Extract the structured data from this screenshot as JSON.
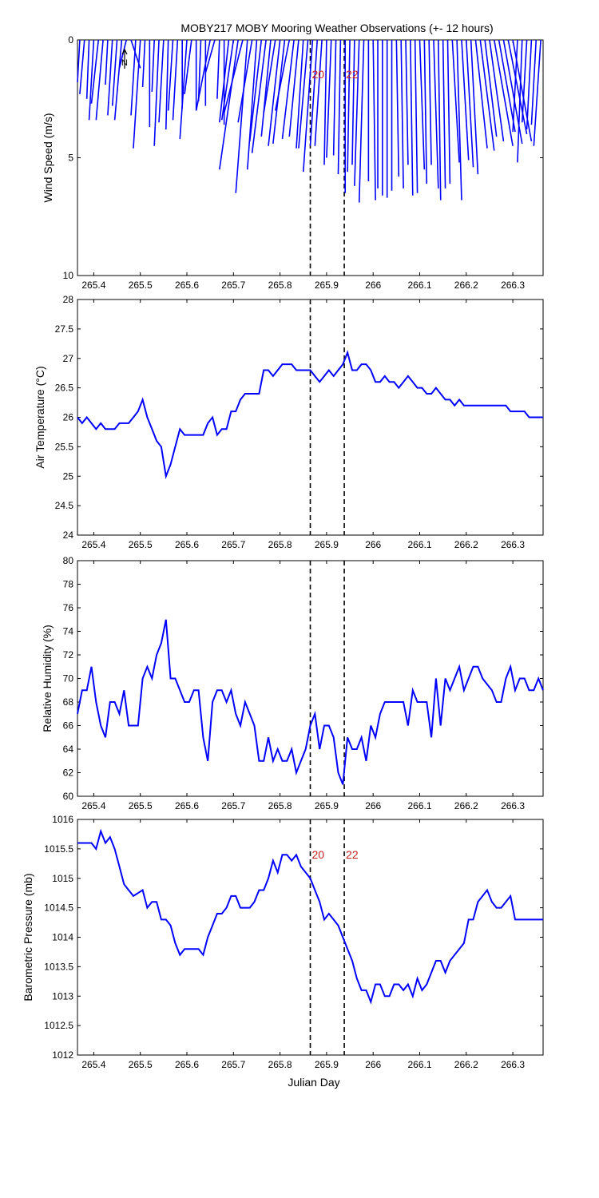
{
  "title": "MOBY217 MOBY Mooring Weather Observations (+- 12 hours)",
  "xlabel": "Julian Day",
  "marker_labels": [
    "20",
    "22"
  ],
  "colors": {
    "series": "#0000ff",
    "marker_line": "#000000",
    "marker_label": "#cc2222",
    "axes": "#000000"
  },
  "chart_data": [
    {
      "type": "line",
      "name": "wind",
      "ylabel": "Wind Speed (m/s)",
      "xlim": [
        265.365,
        266.365
      ],
      "ylim": [
        0,
        10
      ],
      "y_reversed": true,
      "yticks": [
        0,
        5,
        10
      ],
      "xticks": [
        265.4,
        265.5,
        265.6,
        265.7,
        265.8,
        265.9,
        266.0,
        266.1,
        266.2,
        266.3
      ],
      "xtick_labels": [
        "265.4",
        "265.5",
        "265.6",
        "265.7",
        "265.8",
        "265.9",
        "266",
        "266.1",
        "266.2",
        "266.3"
      ],
      "vlines": [
        265.865,
        265.938
      ],
      "stick_origins_x": [
        265.37,
        265.38,
        265.39,
        265.4,
        265.41,
        265.42,
        265.43,
        265.44,
        265.45,
        265.46,
        265.47,
        265.48,
        265.49,
        265.5,
        265.51,
        265.52,
        265.53,
        265.54,
        265.55,
        265.56,
        265.57,
        265.58,
        265.59,
        265.6,
        265.61,
        265.62,
        265.63,
        265.64,
        265.65,
        265.66,
        265.67,
        265.68,
        265.69,
        265.7,
        265.71,
        265.72,
        265.73,
        265.74,
        265.75,
        265.76,
        265.77,
        265.78,
        265.79,
        265.8,
        265.81,
        265.82,
        265.83,
        265.84,
        265.85,
        265.86,
        265.87,
        265.88,
        265.89,
        265.9,
        265.91,
        265.92,
        265.93,
        265.94,
        265.95,
        265.96,
        265.97,
        265.98,
        265.99,
        266.0,
        266.01,
        266.02,
        266.03,
        266.04,
        266.05,
        266.06,
        266.07,
        266.08,
        266.09,
        266.1,
        266.11,
        266.12,
        266.13,
        266.14,
        266.15,
        266.16,
        266.17,
        266.18,
        266.19,
        266.2,
        266.21,
        266.22,
        266.23,
        266.24,
        266.25,
        266.26,
        266.27,
        266.28,
        266.29,
        266.3,
        266.31,
        266.32,
        266.33,
        266.34,
        266.35,
        266.36
      ],
      "stick_tips_x": [
        265.365,
        265.37,
        265.385,
        265.39,
        265.395,
        265.405,
        265.425,
        265.43,
        265.44,
        265.445,
        265.455,
        265.5,
        265.48,
        265.485,
        265.505,
        265.52,
        265.525,
        265.53,
        265.54,
        265.555,
        265.56,
        265.57,
        265.59,
        265.585,
        265.595,
        265.62,
        265.625,
        265.64,
        265.62,
        265.64,
        265.665,
        265.68,
        265.67,
        265.675,
        265.67,
        265.68,
        265.705,
        265.71,
        265.73,
        265.735,
        265.74,
        265.76,
        265.765,
        265.775,
        265.785,
        265.79,
        265.805,
        265.82,
        265.835,
        265.84,
        265.85,
        265.865,
        265.875,
        265.895,
        265.9,
        265.915,
        265.925,
        265.94,
        265.945,
        265.955,
        265.96,
        265.97,
        265.99,
        266.005,
        266.01,
        266.02,
        266.03,
        266.04,
        266.055,
        266.065,
        266.075,
        266.085,
        266.095,
        266.11,
        266.115,
        266.125,
        266.14,
        266.145,
        266.155,
        266.165,
        266.185,
        266.19,
        266.205,
        266.215,
        266.225,
        266.245,
        266.26,
        266.265,
        266.28,
        266.3,
        266.305,
        266.32,
        266.33,
        266.34,
        266.3,
        266.31,
        266.32,
        266.33,
        266.34,
        266.345
      ],
      "stick_tips_y": [
        1.8,
        2.3,
        2.5,
        3.4,
        2.7,
        3.4,
        1.9,
        3.2,
        2.8,
        3.4,
        1.2,
        1.2,
        3.2,
        4.6,
        2.0,
        3.7,
        2.2,
        4.5,
        3.5,
        3.8,
        3.0,
        3.4,
        2.9,
        4.2,
        2.3,
        3.0,
        2.6,
        2.8,
        3.0,
        1.4,
        2.5,
        3.6,
        3.5,
        3.4,
        5.5,
        3.1,
        6.5,
        3.5,
        5.5,
        4.3,
        4.8,
        4.1,
        3.1,
        4.5,
        4.4,
        3.0,
        4.2,
        4.1,
        4.6,
        4.6,
        5.6,
        4.5,
        4.5,
        5.3,
        5.0,
        4.9,
        5.7,
        6.5,
        5.6,
        5.3,
        6.2,
        6.9,
        6.0,
        6.8,
        6.3,
        6.6,
        6.7,
        6.4,
        5.8,
        6.3,
        5.3,
        6.6,
        6.5,
        5.5,
        6.1,
        5.3,
        6.3,
        6.8,
        6.3,
        6.1,
        5.2,
        6.8,
        5.1,
        5.4,
        5.7,
        4.6,
        4.7,
        4.1,
        4.3,
        4.5,
        3.9,
        4.4,
        4.0,
        4.3,
        3.9,
        5.2,
        3.5,
        3.8,
        3.6,
        4.5
      ]
    },
    {
      "type": "line",
      "name": "airtemp",
      "ylabel": "Air Temperature (°C)",
      "xlim": [
        265.365,
        266.365
      ],
      "ylim": [
        24,
        28
      ],
      "yticks": [
        24,
        24.5,
        25,
        25.5,
        26,
        26.5,
        27,
        27.5,
        28
      ],
      "ytick_labels": [
        "24",
        "24.5",
        "25",
        "25.5",
        "26",
        "26.5",
        "27",
        "27.5",
        "28"
      ],
      "xticks": [
        265.4,
        265.5,
        265.6,
        265.7,
        265.8,
        265.9,
        266.0,
        266.1,
        266.2,
        266.3
      ],
      "xtick_labels": [
        "265.4",
        "265.5",
        "265.6",
        "265.7",
        "265.8",
        "265.9",
        "266",
        "266.1",
        "266.2",
        "266.3"
      ],
      "vlines": [
        265.865,
        265.938
      ],
      "x": [
        265.365,
        265.375,
        265.385,
        265.395,
        265.405,
        265.415,
        265.425,
        265.435,
        265.445,
        265.455,
        265.465,
        265.475,
        265.485,
        265.495,
        265.505,
        265.515,
        265.525,
        265.535,
        265.545,
        265.555,
        265.565,
        265.575,
        265.585,
        265.595,
        265.605,
        265.615,
        265.625,
        265.635,
        265.645,
        265.655,
        265.665,
        265.675,
        265.685,
        265.695,
        265.705,
        265.715,
        265.725,
        265.735,
        265.745,
        265.755,
        265.765,
        265.775,
        265.785,
        265.795,
        265.805,
        265.815,
        265.825,
        265.835,
        265.845,
        265.855,
        265.865,
        265.875,
        265.885,
        265.895,
        265.905,
        265.915,
        265.925,
        265.935,
        265.945,
        265.955,
        265.965,
        265.975,
        265.985,
        265.995,
        266.005,
        266.015,
        266.025,
        266.035,
        266.045,
        266.055,
        266.065,
        266.075,
        266.085,
        266.095,
        266.105,
        266.115,
        266.125,
        266.135,
        266.145,
        266.155,
        266.165,
        266.175,
        266.185,
        266.195,
        266.205,
        266.215,
        266.225,
        266.235,
        266.245,
        266.255,
        266.265,
        266.275,
        266.285,
        266.295,
        266.305,
        266.315,
        266.325,
        266.335,
        266.345,
        266.355,
        266.365
      ],
      "y": [
        26.0,
        25.9,
        26.0,
        25.9,
        25.8,
        25.9,
        25.8,
        25.8,
        25.8,
        25.9,
        25.9,
        25.9,
        26.0,
        26.1,
        26.3,
        26.0,
        25.8,
        25.6,
        25.5,
        25.0,
        25.2,
        25.5,
        25.8,
        25.7,
        25.7,
        25.7,
        25.7,
        25.7,
        25.9,
        26.0,
        25.7,
        25.8,
        25.8,
        26.1,
        26.1,
        26.3,
        26.4,
        26.4,
        26.4,
        26.4,
        26.8,
        26.8,
        26.7,
        26.8,
        26.9,
        26.9,
        26.9,
        26.8,
        26.8,
        26.8,
        26.8,
        26.7,
        26.6,
        26.7,
        26.8,
        26.7,
        26.8,
        26.9,
        27.1,
        26.8,
        26.8,
        26.9,
        26.9,
        26.8,
        26.6,
        26.6,
        26.7,
        26.6,
        26.6,
        26.5,
        26.6,
        26.7,
        26.6,
        26.5,
        26.5,
        26.4,
        26.4,
        26.5,
        26.4,
        26.3,
        26.3,
        26.2,
        26.3,
        26.2,
        26.2,
        26.2,
        26.2,
        26.2,
        26.2,
        26.2,
        26.2,
        26.2,
        26.2,
        26.1,
        26.1,
        26.1,
        26.1,
        26.0,
        26.0,
        26.0,
        26.0
      ]
    },
    {
      "type": "line",
      "name": "humidity",
      "ylabel": "Relative Humidity (%)",
      "xlim": [
        265.365,
        266.365
      ],
      "ylim": [
        60,
        80
      ],
      "yticks": [
        60,
        62,
        64,
        66,
        68,
        70,
        72,
        74,
        76,
        78,
        80
      ],
      "ytick_labels": [
        "60",
        "62",
        "64",
        "66",
        "68",
        "70",
        "72",
        "74",
        "76",
        "78",
        "80"
      ],
      "xticks": [
        265.4,
        265.5,
        265.6,
        265.7,
        265.8,
        265.9,
        266.0,
        266.1,
        266.2,
        266.3
      ],
      "xtick_labels": [
        "265.4",
        "265.5",
        "265.6",
        "265.7",
        "265.8",
        "265.9",
        "266",
        "266.1",
        "266.2",
        "266.3"
      ],
      "vlines": [
        265.865,
        265.938
      ],
      "x": [
        265.365,
        265.375,
        265.385,
        265.395,
        265.405,
        265.415,
        265.425,
        265.435,
        265.445,
        265.455,
        265.465,
        265.475,
        265.485,
        265.495,
        265.505,
        265.515,
        265.525,
        265.535,
        265.545,
        265.555,
        265.565,
        265.575,
        265.585,
        265.595,
        265.605,
        265.615,
        265.625,
        265.635,
        265.645,
        265.655,
        265.665,
        265.675,
        265.685,
        265.695,
        265.705,
        265.715,
        265.725,
        265.735,
        265.745,
        265.755,
        265.765,
        265.775,
        265.785,
        265.795,
        265.805,
        265.815,
        265.825,
        265.835,
        265.845,
        265.855,
        265.865,
        265.875,
        265.885,
        265.895,
        265.905,
        265.915,
        265.925,
        265.935,
        265.945,
        265.955,
        265.965,
        265.975,
        265.985,
        265.995,
        266.005,
        266.015,
        266.025,
        266.035,
        266.045,
        266.055,
        266.065,
        266.075,
        266.085,
        266.095,
        266.105,
        266.115,
        266.125,
        266.135,
        266.145,
        266.155,
        266.165,
        266.175,
        266.185,
        266.195,
        266.205,
        266.215,
        266.225,
        266.235,
        266.245,
        266.255,
        266.265,
        266.275,
        266.285,
        266.295,
        266.305,
        266.315,
        266.325,
        266.335,
        266.345,
        266.355,
        266.365
      ],
      "y": [
        67,
        69,
        69,
        71,
        68,
        66,
        65,
        68,
        68,
        67,
        69,
        66,
        66,
        66,
        70,
        71,
        70,
        72,
        73,
        75,
        70,
        70,
        69,
        68,
        68,
        69,
        69,
        65,
        63,
        68,
        69,
        69,
        68,
        69,
        67,
        66,
        68,
        67,
        66,
        63,
        63,
        65,
        63,
        64,
        63,
        63,
        64,
        62,
        63,
        64,
        66,
        67,
        64,
        66,
        66,
        65,
        62,
        61,
        65,
        64,
        64,
        65,
        63,
        66,
        65,
        67,
        68,
        68,
        68,
        68,
        68,
        66,
        69,
        68,
        68,
        68,
        65,
        70,
        66,
        70,
        69,
        70,
        71,
        69,
        70,
        71,
        71,
        70,
        69.5,
        69,
        68,
        68,
        70,
        71,
        69,
        70,
        70,
        69,
        69,
        70,
        69
      ]
    },
    {
      "type": "line",
      "name": "pressure",
      "ylabel": "Barometric Pressure (mb)",
      "xlim": [
        265.365,
        266.365
      ],
      "ylim": [
        1012,
        1016
      ],
      "yticks": [
        1012,
        1012.5,
        1013,
        1013.5,
        1014,
        1014.5,
        1015,
        1015.5,
        1016
      ],
      "ytick_labels": [
        "1012",
        "1012.5",
        "1013",
        "1013.5",
        "1014",
        "1014.5",
        "1015",
        "1015.5",
        "1016"
      ],
      "xticks": [
        265.4,
        265.5,
        265.6,
        265.7,
        265.8,
        265.9,
        266.0,
        266.1,
        266.2,
        266.3
      ],
      "xtick_labels": [
        "265.4",
        "265.5",
        "265.6",
        "265.7",
        "265.8",
        "265.9",
        "266",
        "266.1",
        "266.2",
        "266.3"
      ],
      "vlines": [
        265.865,
        265.938
      ],
      "show_marker_labels": true,
      "x": [
        265.365,
        265.375,
        265.385,
        265.395,
        265.405,
        265.415,
        265.425,
        265.435,
        265.445,
        265.455,
        265.465,
        265.475,
        265.485,
        265.495,
        265.505,
        265.515,
        265.525,
        265.535,
        265.545,
        265.555,
        265.565,
        265.575,
        265.585,
        265.595,
        265.605,
        265.615,
        265.625,
        265.635,
        265.645,
        265.655,
        265.665,
        265.675,
        265.685,
        265.695,
        265.705,
        265.715,
        265.725,
        265.735,
        265.745,
        265.755,
        265.765,
        265.775,
        265.785,
        265.795,
        265.805,
        265.815,
        265.825,
        265.835,
        265.845,
        265.855,
        265.865,
        265.875,
        265.885,
        265.895,
        265.905,
        265.915,
        265.925,
        265.935,
        265.945,
        265.955,
        265.965,
        265.975,
        265.985,
        265.995,
        266.005,
        266.015,
        266.025,
        266.035,
        266.045,
        266.055,
        266.065,
        266.075,
        266.085,
        266.095,
        266.105,
        266.115,
        266.125,
        266.135,
        266.145,
        266.155,
        266.165,
        266.175,
        266.185,
        266.195,
        266.205,
        266.215,
        266.225,
        266.235,
        266.245,
        266.255,
        266.265,
        266.275,
        266.285,
        266.295,
        266.305,
        266.315,
        266.325,
        266.335,
        266.345,
        266.355,
        266.365
      ],
      "y": [
        1015.6,
        1015.6,
        1015.6,
        1015.6,
        1015.5,
        1015.8,
        1015.6,
        1015.7,
        1015.5,
        1015.2,
        1014.9,
        1014.8,
        1014.7,
        1014.75,
        1014.8,
        1014.5,
        1014.6,
        1014.6,
        1014.3,
        1014.3,
        1014.2,
        1013.9,
        1013.7,
        1013.8,
        1013.8,
        1013.8,
        1013.8,
        1013.7,
        1014.0,
        1014.2,
        1014.4,
        1014.4,
        1014.5,
        1014.7,
        1014.7,
        1014.5,
        1014.5,
        1014.5,
        1014.6,
        1014.8,
        1014.8,
        1015.0,
        1015.3,
        1015.1,
        1015.4,
        1015.4,
        1015.3,
        1015.4,
        1015.2,
        1015.1,
        1015.0,
        1014.8,
        1014.6,
        1014.3,
        1014.4,
        1014.3,
        1014.2,
        1014.0,
        1013.8,
        1013.6,
        1013.3,
        1013.1,
        1013.1,
        1012.9,
        1013.2,
        1013.2,
        1013.0,
        1013.0,
        1013.2,
        1013.2,
        1013.1,
        1013.2,
        1013.0,
        1013.3,
        1013.1,
        1013.2,
        1013.4,
        1013.6,
        1013.6,
        1013.4,
        1013.6,
        1013.7,
        1013.8,
        1013.9,
        1014.3,
        1014.3,
        1014.6,
        1014.7,
        1014.8,
        1014.6,
        1014.5,
        1014.5,
        1014.6,
        1014.7,
        1014.3,
        1014.3,
        1014.3,
        1014.3,
        1014.3,
        1014.3,
        1014.3
      ]
    }
  ]
}
